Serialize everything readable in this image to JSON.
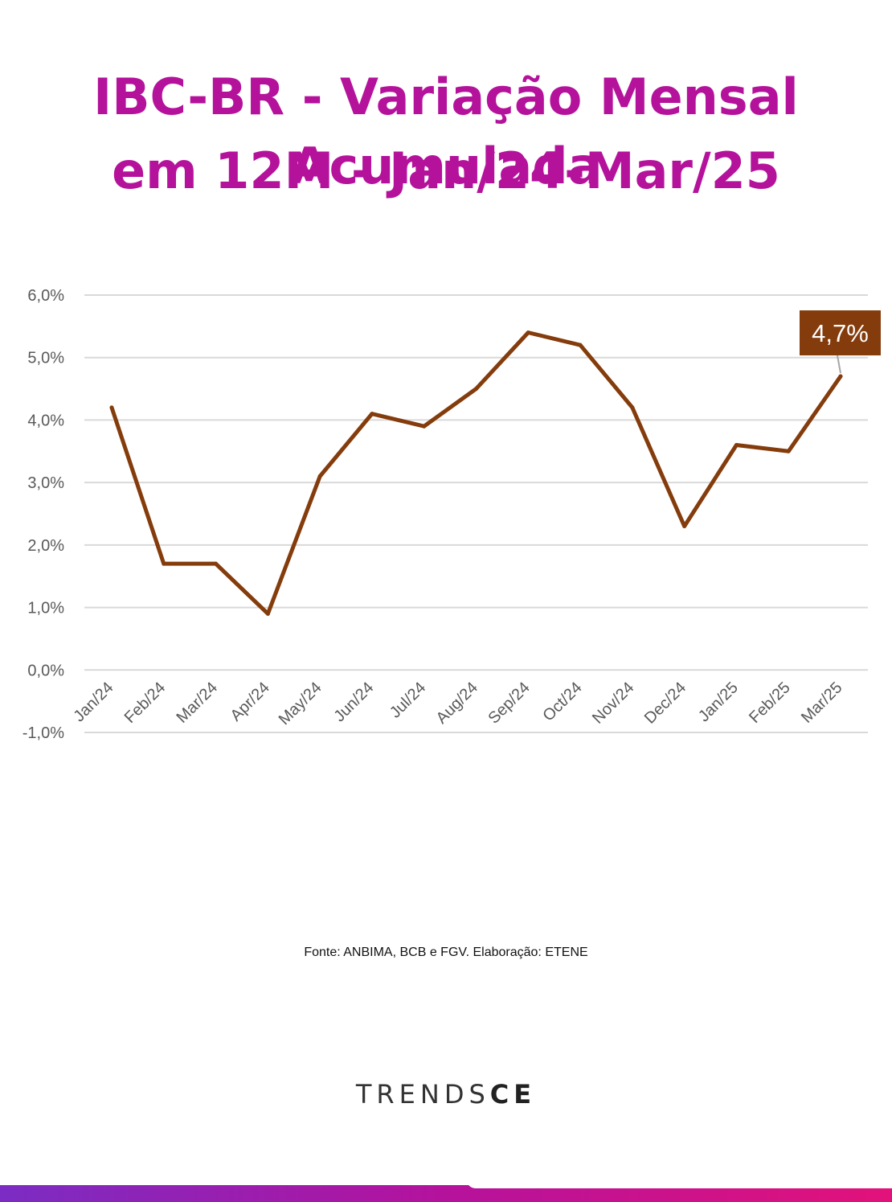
{
  "title_line_1": "IBC-BR - Variação Mensal Acumulada",
  "title_line_2": "em 12M - Jan/24-Mar/25",
  "source": "Fonte: ANBIMA, BCB e FGV. Elaboração: ETENE",
  "logo": {
    "light": "TRENDS",
    "bold": "CE"
  },
  "colors": {
    "title": "#b5129c",
    "line": "#843c0c",
    "callout": "#843c0c",
    "grid": "#d9d9d9"
  },
  "chart_data": {
    "type": "line",
    "title": "",
    "xlabel": "",
    "ylabel": "",
    "categories": [
      "Jan/24",
      "Feb/24",
      "Mar/24",
      "Apr/24",
      "May/24",
      "Jun/24",
      "Jul/24",
      "Aug/24",
      "Sep/24",
      "Oct/24",
      "Nov/24",
      "Dec/24",
      "Jan/25",
      "Feb/25",
      "Mar/25"
    ],
    "series": [
      {
        "values": [
          4.2,
          1.7,
          1.7,
          0.9,
          3.1,
          4.1,
          3.9,
          4.5,
          5.4,
          5.2,
          4.2,
          2.3,
          3.6,
          3.5,
          4.7
        ]
      }
    ],
    "ylim": [
      -1.0,
      6.0
    ],
    "yticks": [
      -1.0,
      0.0,
      1.0,
      2.0,
      3.0,
      4.0,
      5.0,
      6.0
    ],
    "ytick_labels": [
      "-1,0%",
      "0,0%",
      "1,0%",
      "2,0%",
      "3,0%",
      "4,0%",
      "5,0%",
      "6,0%"
    ],
    "grid": true,
    "legend": "none",
    "callout": {
      "category": "Mar/25",
      "label": "4,7%"
    }
  }
}
